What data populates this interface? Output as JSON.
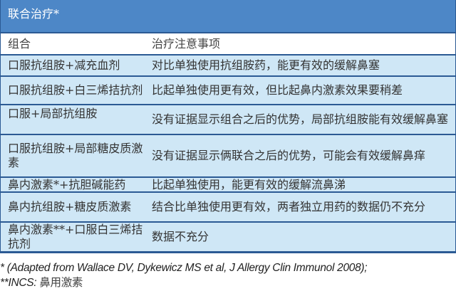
{
  "table": {
    "title": "联合治疗*",
    "headers": [
      "组合",
      "治疗注意事项"
    ],
    "rows": [
      [
        "口服抗组胺+减充血剂",
        "对比单独使用抗组胺药，能更有效的缓解鼻塞"
      ],
      [
        "口服抗组胺+白三烯拮抗剂",
        "比起单独使用更有效，但比起鼻内激素效果要稍差"
      ],
      [
        "口服+局部抗组胺",
        "没有证据显示组合之后的优势，局部抗组胺能有效缓解鼻塞"
      ],
      [
        "口服抗组胺+局部糖皮质激素",
        "没有证据显示俩联合之后的优势，可能会有效缓解鼻痒"
      ],
      [
        "鼻内激素*+抗胆碱能药",
        "比起单独使用，能更有效的缓解流鼻涕"
      ],
      [
        "鼻内抗组胺+糖皮质激素",
        "结合比单独使用更有效，两者独立用药的数据仍不充分"
      ],
      [
        "鼻内激素**+口服白三烯拮抗剂",
        "数据不充分"
      ]
    ]
  },
  "footnotes": {
    "line1": "* (Adapted from Wallace DV, Dykewicz MS et al, J Allergy Clin Immunol 2008);",
    "line2_prefix": "**INCS: ",
    "line2_cn": "鼻用激素"
  },
  "colors": {
    "title_bg": "#4d87c7",
    "row_bg": "#cfe7f6",
    "border": "#2b5a94"
  }
}
